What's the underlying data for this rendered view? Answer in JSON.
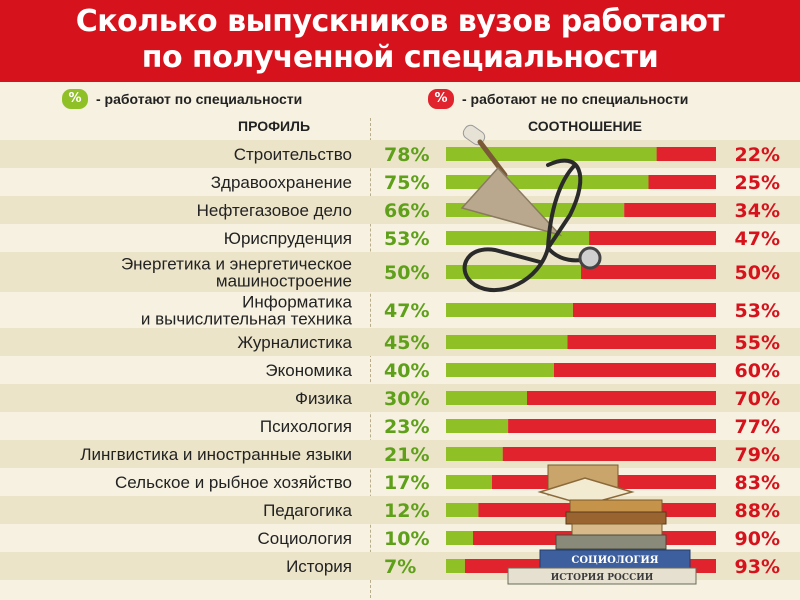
{
  "header": {
    "title_line1": "Сколько выпускников вузов работают",
    "title_line2": "по полученной специальности"
  },
  "legend": {
    "green_badge": "%",
    "green_text": "- работают по специальности",
    "red_badge": "%",
    "red_text": "- работают не по специальности"
  },
  "columns": {
    "profile": "ПРОФИЛЬ",
    "ratio": "СООТНОШЕНИЕ"
  },
  "decorations": {
    "book1_label": "СОЦИОЛОГИЯ",
    "book2_label": "ИСТОРИЯ РОССИИ"
  },
  "colors": {
    "header": "#d6131c",
    "green": "#8fc127",
    "red": "#e0232c",
    "green_text": "#5fa01a",
    "red_text": "#d6131c",
    "stripe": "#ece4c9",
    "background": "#f6f1e0"
  },
  "chart_data": {
    "type": "bar",
    "orientation": "horizontal-stacked-100",
    "categories": [
      [
        "Строительство"
      ],
      [
        "Здравоохранение"
      ],
      [
        "Нефтегазовое дело"
      ],
      [
        "Юриспруденция"
      ],
      [
        "Энергетика и энергетическое",
        "машиностроение"
      ],
      [
        "Информатика",
        "и вычислительная техника"
      ],
      [
        "Журналистика"
      ],
      [
        "Экономика"
      ],
      [
        "Физика"
      ],
      [
        "Психология"
      ],
      [
        "Лингвистика и иностранные языки"
      ],
      [
        "Сельское и рыбное хозяйство"
      ],
      [
        "Педагогика"
      ],
      [
        "Социология"
      ],
      [
        "История"
      ]
    ],
    "series": [
      {
        "values": [
          78,
          75,
          66,
          53,
          50,
          47,
          45,
          40,
          30,
          23,
          21,
          17,
          12,
          10,
          7
        ],
        "labels": [
          "78%",
          "75%",
          "66%",
          "53%",
          "50%",
          "47%",
          "45%",
          "40%",
          "30%",
          "23%",
          "21%",
          "17%",
          "12%",
          "10%",
          "7%"
        ]
      },
      {
        "values": [
          22,
          25,
          34,
          47,
          50,
          53,
          55,
          60,
          70,
          77,
          79,
          83,
          88,
          90,
          93
        ],
        "labels": [
          "22%",
          "25%",
          "34%",
          "47%",
          "50%",
          "53%",
          "55%",
          "60%",
          "70%",
          "77%",
          "79%",
          "83%",
          "88%",
          "90%",
          "93%"
        ]
      }
    ],
    "xlim": [
      0,
      100
    ],
    "grid": false,
    "legend_position": "top"
  }
}
